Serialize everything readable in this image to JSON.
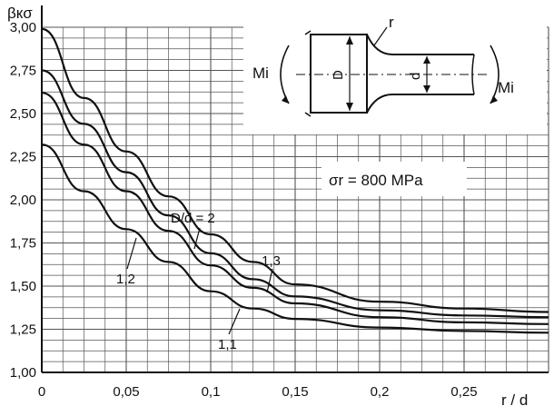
{
  "chart_data": {
    "type": "line",
    "ylabel": "βкσ",
    "xlabel": "r / d",
    "xlim": [
      0,
      0.3
    ],
    "ylim": [
      1.0,
      3.0
    ],
    "x_ticks": [
      0,
      0.05,
      0.1,
      0.15,
      0.2,
      0.25
    ],
    "x_tick_labels": [
      "0",
      "0,05",
      "0,1",
      "0,15",
      "0,2",
      "0,25"
    ],
    "y_ticks": [
      1.0,
      1.25,
      1.5,
      1.75,
      2.0,
      2.25,
      2.5,
      2.75,
      3.0
    ],
    "y_tick_labels": [
      "1,00",
      "1,25",
      "1,50",
      "1,75",
      "2,00",
      "2,25",
      "2,50",
      "2,75",
      "3,00"
    ],
    "grid": true,
    "annotation": "σr = 800 MPa",
    "series": [
      {
        "name": "D/d = 2",
        "x": [
          0,
          0.025,
          0.05,
          0.075,
          0.1,
          0.125,
          0.15,
          0.2,
          0.25,
          0.3
        ],
        "y": [
          2.99,
          2.59,
          2.28,
          2.02,
          1.8,
          1.64,
          1.51,
          1.41,
          1.37,
          1.35
        ]
      },
      {
        "name": "1,3",
        "x": [
          0,
          0.025,
          0.05,
          0.075,
          0.1,
          0.125,
          0.15,
          0.2,
          0.25,
          0.3
        ],
        "y": [
          2.75,
          2.44,
          2.16,
          1.91,
          1.69,
          1.54,
          1.44,
          1.36,
          1.33,
          1.32
        ]
      },
      {
        "name": "1,2",
        "x": [
          0,
          0.025,
          0.05,
          0.075,
          0.1,
          0.125,
          0.15,
          0.2,
          0.25,
          0.3
        ],
        "y": [
          2.62,
          2.32,
          2.05,
          1.82,
          1.62,
          1.49,
          1.4,
          1.32,
          1.29,
          1.28
        ]
      },
      {
        "name": "1,1",
        "x": [
          0,
          0.025,
          0.05,
          0.075,
          0.1,
          0.125,
          0.15,
          0.2,
          0.25,
          0.3
        ],
        "y": [
          2.32,
          2.05,
          1.83,
          1.64,
          1.47,
          1.37,
          1.31,
          1.26,
          1.24,
          1.23
        ]
      }
    ]
  },
  "inset": {
    "moment_left": "Mi",
    "moment_right": "Mi",
    "radius_label": "r",
    "big_diameter_label": "D",
    "small_diameter_label": "d"
  }
}
